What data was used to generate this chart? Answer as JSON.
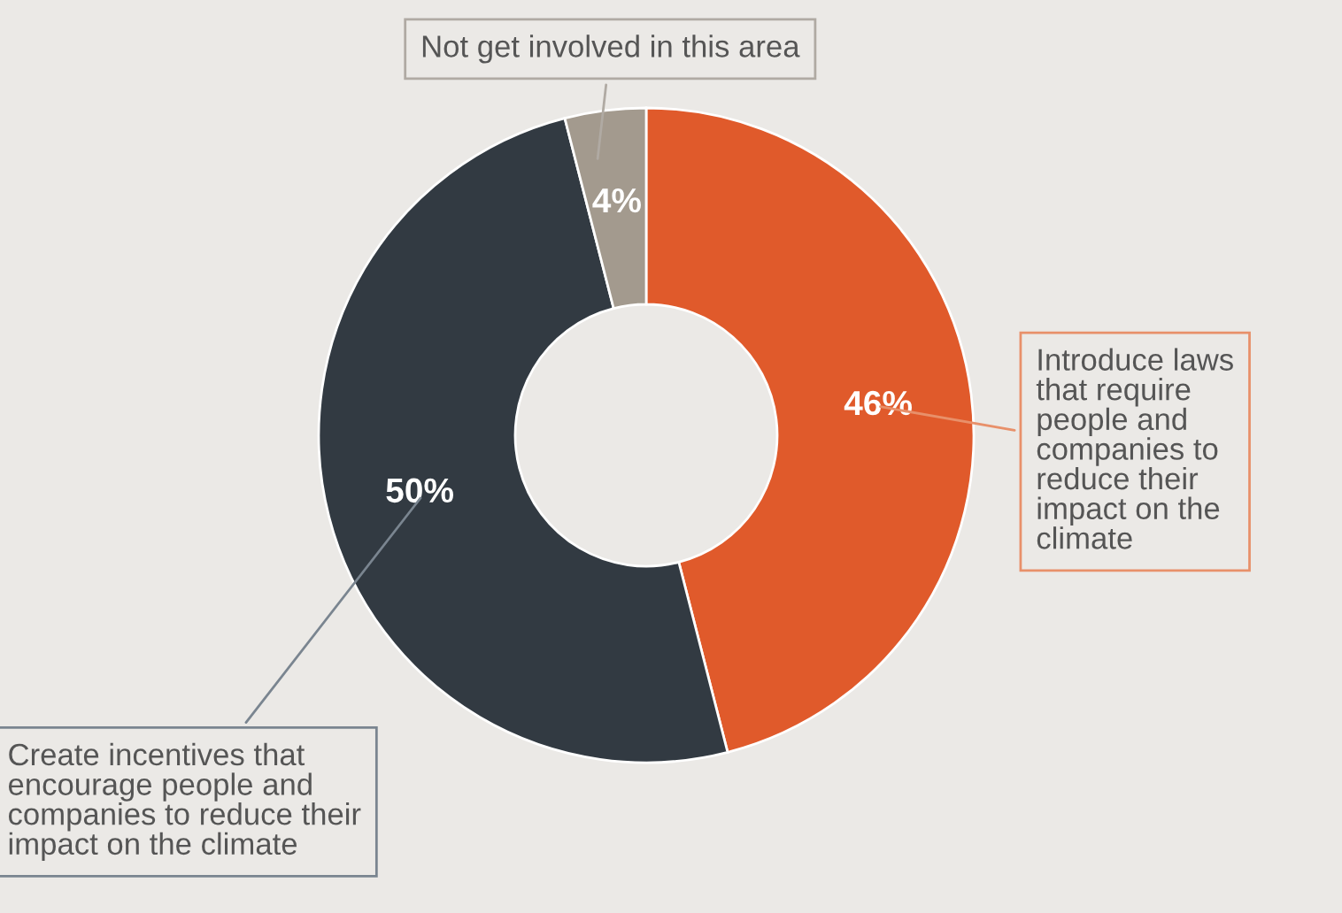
{
  "chart_data": {
    "type": "donut",
    "categories": [
      "Introduce laws\nthat require\npeople and\ncompanies to\nreduce their\nimpact on the\nclimate",
      "Create incentives that\nencourage people and\ncompanies to reduce their\nimpact on the climate",
      "Not get involved in this area"
    ],
    "values": [
      46,
      50,
      4
    ],
    "colors": [
      "#e05a2b",
      "#323a42",
      "#a39a8e"
    ],
    "value_labels": [
      "46%",
      "50%",
      "4%"
    ]
  }
}
